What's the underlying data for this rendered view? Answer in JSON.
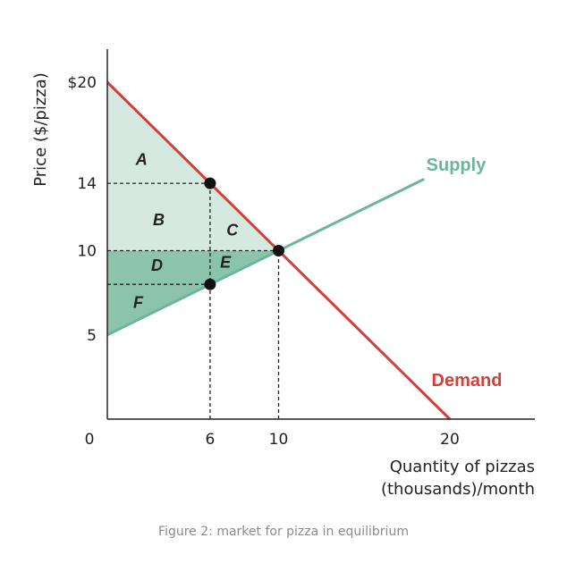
{
  "chart_data": {
    "type": "line",
    "xlabel_lines": [
      "Quantity of pizzas",
      "(thousands)/month"
    ],
    "ylabel": "Price ($/pizza)",
    "xlim": [
      0,
      25
    ],
    "ylim": [
      0,
      20
    ],
    "x_ticks": [
      {
        "value": 0,
        "label": "0"
      },
      {
        "value": 6,
        "label": "6"
      },
      {
        "value": 10,
        "label": "10"
      },
      {
        "value": 20,
        "label": "20"
      }
    ],
    "y_ticks": [
      {
        "value": 20,
        "label": "$20"
      },
      {
        "value": 14,
        "label": "14"
      },
      {
        "value": 10,
        "label": "10"
      },
      {
        "value": 5,
        "label": "5"
      }
    ],
    "series": [
      {
        "name": "Demand",
        "color": "#d2403a",
        "points": [
          [
            0,
            20
          ],
          [
            20,
            0
          ]
        ]
      },
      {
        "name": "Supply",
        "color": "#6db59a",
        "points": [
          [
            0,
            5
          ],
          [
            18.5,
            14.25
          ]
        ]
      }
    ],
    "points": [
      {
        "x": 6,
        "y": 14
      },
      {
        "x": 10,
        "y": 10
      },
      {
        "x": 6,
        "y": 8
      }
    ],
    "guide_lines": [
      {
        "from": [
          0,
          14
        ],
        "to": [
          6,
          14
        ]
      },
      {
        "from": [
          0,
          10
        ],
        "to": [
          10,
          10
        ]
      },
      {
        "from": [
          0,
          8
        ],
        "to": [
          6,
          8
        ]
      },
      {
        "from": [
          6,
          0
        ],
        "to": [
          6,
          14
        ]
      },
      {
        "from": [
          10,
          0
        ],
        "to": [
          10,
          10
        ]
      }
    ],
    "regions": [
      {
        "label": "A",
        "at": [
          2,
          15.1
        ],
        "shade": "light"
      },
      {
        "label": "B",
        "at": [
          3,
          11.5
        ],
        "shade": "light"
      },
      {
        "label": "C",
        "at": [
          7.3,
          10.9
        ],
        "shade": "light"
      },
      {
        "label": "D",
        "at": [
          2.9,
          8.8
        ],
        "shade": "dark"
      },
      {
        "label": "E",
        "at": [
          6.9,
          9
        ],
        "shade": "dark"
      },
      {
        "label": "F",
        "at": [
          1.8,
          6.6
        ],
        "shade": "dark"
      }
    ],
    "colors": {
      "light_fill": "#d6e9e1",
      "dark_fill": "#8cc3ad",
      "axis": "#222222",
      "guide": "#222222"
    }
  },
  "caption": "Figure 2: market for pizza in equilibrium"
}
